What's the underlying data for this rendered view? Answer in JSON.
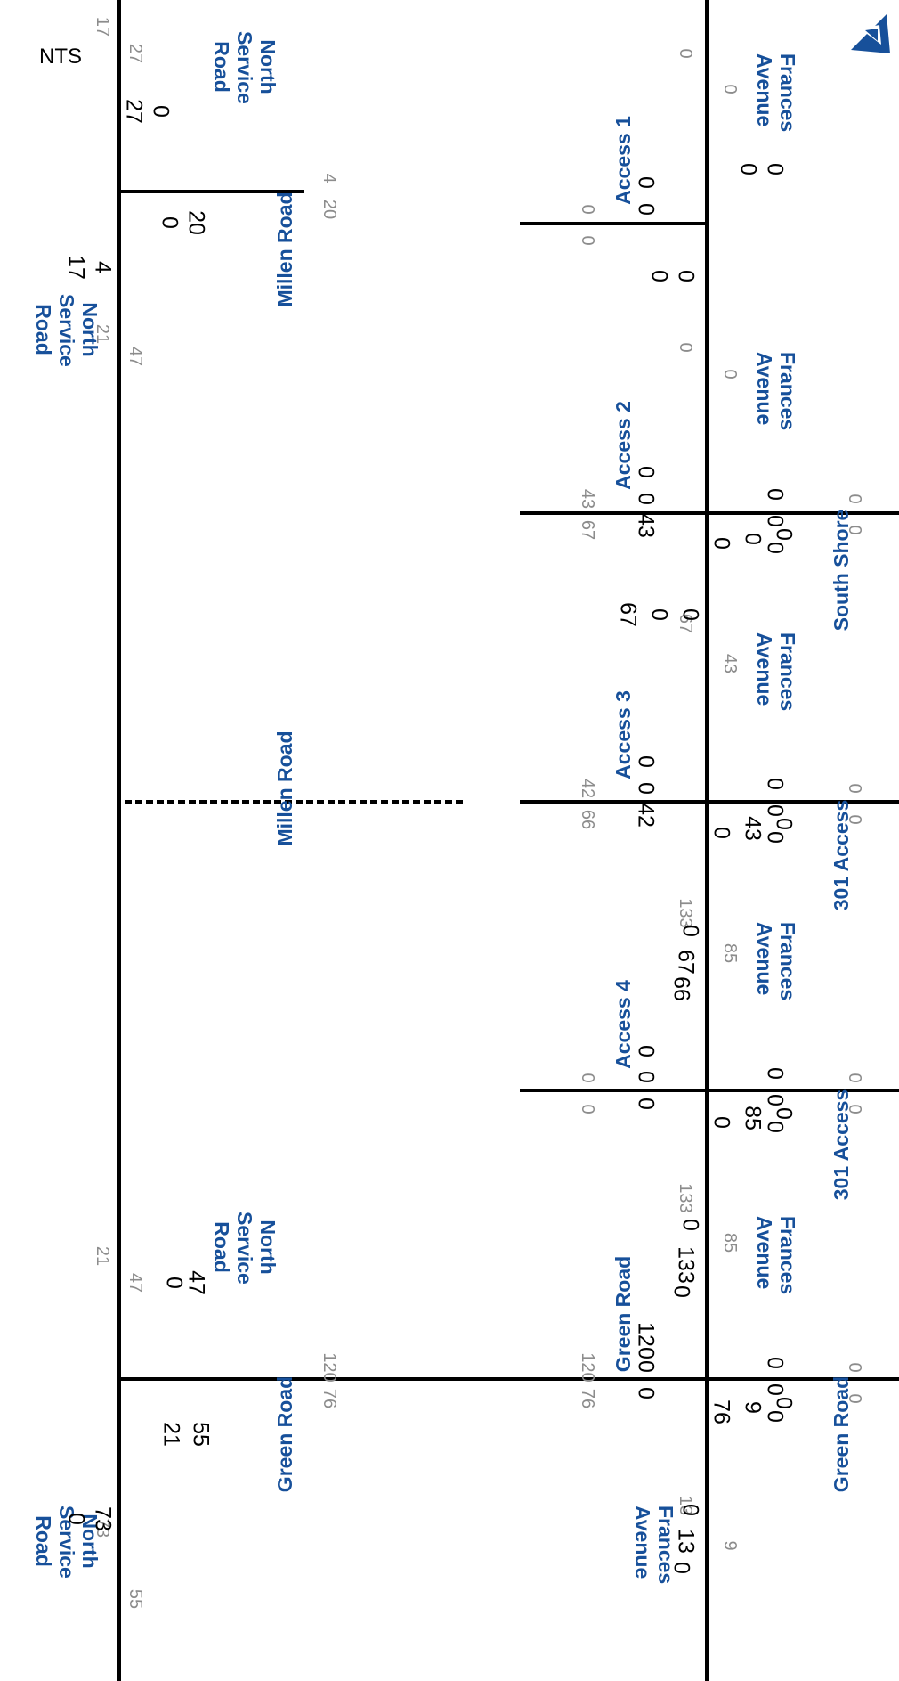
{
  "diagram": {
    "roads": {
      "frances_avenue": "Frances Avenue",
      "north_service_road": "North Service Road",
      "green_road": "Green Road",
      "millen_road": "Millen Road",
      "south_shore": "South Shore",
      "access_1": "Access 1",
      "access_2": "Access 2",
      "access_3": "Access 3",
      "access_4": "Access 4",
      "access_301": "301 Access",
      "access_301b": "301 Access"
    },
    "nts": "NTS",
    "colors": {
      "road_label": "#17509a",
      "segment_volume": "#8c8c8c",
      "turn_volume": "#000000"
    },
    "segment_volumes": {
      "fr_south_nb": "13",
      "fr_south_sb": "9",
      "fr_gr_301b_nb": "133",
      "fr_gr_301b_sb": "85",
      "fr_301b_301_nb": "133",
      "fr_301b_301_sb": "85",
      "fr_301_ss_nb": "67",
      "fr_ss_301_sb": "43",
      "fr_ss_a1_nb": "0",
      "fr_ss_a1_sb": "0",
      "fr_north_nb": "0",
      "fr_north_sb": "0",
      "gr_west_eb": "0",
      "gr_mid_wb": "120",
      "gr_mid_eb": "76",
      "gr_east_wb": "120",
      "gr_east_eb": "76",
      "a301b_west_eb": "0",
      "a4_wb": "0",
      "a4_eb": "0",
      "a301_west_eb": "0",
      "a3_wb": "42",
      "a3_eb": "66",
      "ss_west_eb": "0",
      "a2_wb": "43",
      "a2_eb": "67",
      "ss_wb_west": "0",
      "a301_wb_west": "0",
      "a301b_wb_west": "0",
      "gr_wb_west": "0",
      "a1_wb": "0",
      "a1_eb": "0",
      "mr_wb": "4",
      "mr_eb": "20",
      "nsr_south_nb": "73",
      "nsr_south_sb": "55",
      "nsr_gr_mr_nb": "21",
      "nsr_gr_mr_sb": "47",
      "nsr_mr_north_nb": "17",
      "nsr_mr_north_sb": "27",
      "nsr_mr_s_nb": "21",
      "nsr_mr_s_sb": "47"
    },
    "turn_volumes": {
      "g_sb_l": "76",
      "g_sb_t": "9",
      "g_sb_r": "0",
      "g_wb_l": "120",
      "g_wb_t": "0",
      "g_wb_r": "0",
      "g_eb_l": "0",
      "g_eb_t": "0",
      "g_eb_r": "0",
      "g_nb_l": "0",
      "g_nb_t": "13",
      "g_nb_r": "0",
      "b_sb_l": "0",
      "b_sb_t": "85",
      "b_sb_r": "0",
      "b_wb_l": "0",
      "b_wb_t": "0",
      "b_wb_r": "0",
      "b_eb_l": "0",
      "b_eb_t": "0",
      "b_eb_r": "0",
      "b_nb_l": "0",
      "b_nb_t": "133",
      "b_nb_r": "0",
      "c_sb_l": "0",
      "c_sb_t": "43",
      "c_sb_r": "0",
      "c_wb_l": "0",
      "c_wb_t": "0",
      "c_wb_r": "42",
      "c_eb_l": "0",
      "c_eb_t": "0",
      "c_eb_r": "0",
      "c_nb_l": "0",
      "c_nb_t": "67",
      "c_nb_r": "66",
      "d_sb_l": "0",
      "d_sb_t": "0",
      "d_sb_r": "0",
      "d_wb_l": "0",
      "d_wb_t": "0",
      "d_wb_r": "43",
      "d_eb_l": "0",
      "d_eb_t": "0",
      "d_eb_r": "0",
      "d_nb_l": "0",
      "d_nb_t": "0",
      "d_nb_r": "67",
      "e_sb_l": "0",
      "e_sb_t": "0",
      "e_wb_l": "0",
      "e_wb_r": "0",
      "e_nb_t": "0",
      "e_nb_r": "0",
      "ng_sb_t": "0",
      "ng_sb_l": "47",
      "ng_eb_l": "55",
      "ng_eb_r": "21",
      "ng_nb_t": "0",
      "ng_nb_r": "73",
      "nm_sb_t": "27",
      "nm_sb_r": "0",
      "nm_eb_l": "20",
      "nm_eb_r": "0",
      "nm_nb_t": "17",
      "nm_nb_l": "4"
    }
  }
}
